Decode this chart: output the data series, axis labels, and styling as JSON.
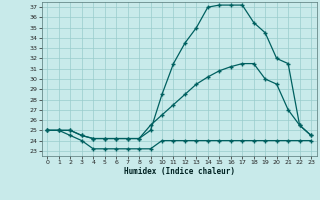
{
  "xlabel": "Humidex (Indice chaleur)",
  "xlim": [
    -0.5,
    23.5
  ],
  "ylim": [
    22.5,
    37.5
  ],
  "xticks": [
    0,
    1,
    2,
    3,
    4,
    5,
    6,
    7,
    8,
    9,
    10,
    11,
    12,
    13,
    14,
    15,
    16,
    17,
    18,
    19,
    20,
    21,
    22,
    23
  ],
  "yticks": [
    23,
    24,
    25,
    26,
    27,
    28,
    29,
    30,
    31,
    32,
    33,
    34,
    35,
    36,
    37
  ],
  "bg_color": "#c8eaea",
  "line_color": "#006060",
  "grid_color": "#99cccc",
  "curve1_x": [
    0,
    1,
    2,
    3,
    4,
    5,
    6,
    7,
    8,
    9,
    10,
    11,
    12,
    13,
    14,
    15,
    16,
    17,
    18,
    19,
    20,
    21,
    22,
    23
  ],
  "curve1_y": [
    25.0,
    25.0,
    24.5,
    24.0,
    23.2,
    23.2,
    23.2,
    23.2,
    23.2,
    23.2,
    24.0,
    24.0,
    24.0,
    24.0,
    24.0,
    24.0,
    24.0,
    24.0,
    24.0,
    24.0,
    24.0,
    24.0,
    24.0,
    24.0
  ],
  "curve2_x": [
    0,
    1,
    2,
    3,
    4,
    5,
    6,
    7,
    8,
    9,
    10,
    11,
    12,
    13,
    14,
    15,
    16,
    17,
    18,
    19,
    20,
    21,
    22,
    23
  ],
  "curve2_y": [
    25.0,
    25.0,
    25.0,
    24.5,
    24.2,
    24.2,
    24.2,
    24.2,
    24.2,
    25.5,
    26.5,
    27.5,
    28.5,
    29.5,
    30.2,
    30.8,
    31.2,
    31.5,
    31.5,
    30.0,
    29.5,
    27.0,
    25.5,
    24.5
  ],
  "curve3_x": [
    0,
    1,
    2,
    3,
    4,
    5,
    6,
    7,
    8,
    9,
    10,
    11,
    12,
    13,
    14,
    15,
    16,
    17,
    18,
    19,
    20,
    21,
    22,
    23
  ],
  "curve3_y": [
    25.0,
    25.0,
    25.0,
    24.5,
    24.2,
    24.2,
    24.2,
    24.2,
    24.2,
    25.0,
    28.5,
    31.5,
    33.5,
    35.0,
    37.0,
    37.2,
    37.2,
    37.2,
    35.5,
    34.5,
    32.0,
    31.5,
    25.5,
    24.5
  ]
}
